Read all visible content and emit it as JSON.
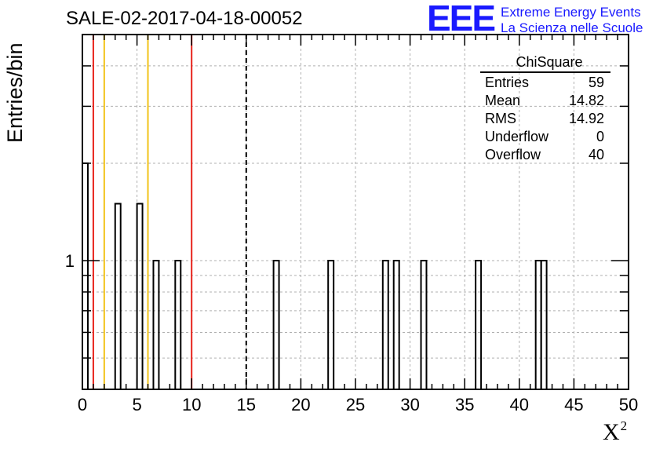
{
  "title": "SALE-02-2017-04-18-00052",
  "logo": {
    "mark": "EEE",
    "line1": "Extreme Energy Events",
    "line2": "La Scienza nelle Scuole",
    "color": "#1a1aff"
  },
  "stats_box": {
    "title": "ChiSquare",
    "rows": [
      {
        "label": "Entries",
        "value": "59"
      },
      {
        "label": "Mean",
        "value": "14.82"
      },
      {
        "label": "RMS",
        "value": "14.92"
      },
      {
        "label": "Underflow",
        "value": "0"
      },
      {
        "label": "Overflow",
        "value": "40"
      }
    ]
  },
  "chart_data": {
    "type": "bar",
    "histogram": true,
    "title": "SALE-02-2017-04-18-00052",
    "xlabel": "X",
    "xlabel_superscript": "2",
    "ylabel": "Entries/bin",
    "xlim": [
      0,
      50
    ],
    "ylim": [
      0.4,
      5
    ],
    "yscale": "log",
    "bin_width": 0.5,
    "x_ticks": [
      0,
      5,
      10,
      15,
      20,
      25,
      30,
      35,
      40,
      45,
      50
    ],
    "y_tick_labels": [
      {
        "value": 1,
        "label": "1"
      }
    ],
    "grid": true,
    "bins": [
      {
        "x": 0.25,
        "value": 2
      },
      {
        "x": 3.25,
        "value": 1.5
      },
      {
        "x": 5.25,
        "value": 1.5
      },
      {
        "x": 6.75,
        "value": 1
      },
      {
        "x": 8.75,
        "value": 1
      },
      {
        "x": 17.75,
        "value": 1
      },
      {
        "x": 22.75,
        "value": 1
      },
      {
        "x": 27.75,
        "value": 1
      },
      {
        "x": 28.75,
        "value": 1
      },
      {
        "x": 31.25,
        "value": 1
      },
      {
        "x": 36.25,
        "value": 1
      },
      {
        "x": 41.75,
        "value": 1
      },
      {
        "x": 42.25,
        "value": 1
      }
    ],
    "vertical_lines": [
      {
        "x": 1,
        "color": "#e8221a",
        "style": "solid"
      },
      {
        "x": 2,
        "color": "#f2c31a",
        "style": "solid"
      },
      {
        "x": 6,
        "color": "#f2c31a",
        "style": "solid"
      },
      {
        "x": 10,
        "color": "#e8221a",
        "style": "solid"
      },
      {
        "x": 15,
        "color": "#000000",
        "style": "dashed"
      }
    ]
  }
}
